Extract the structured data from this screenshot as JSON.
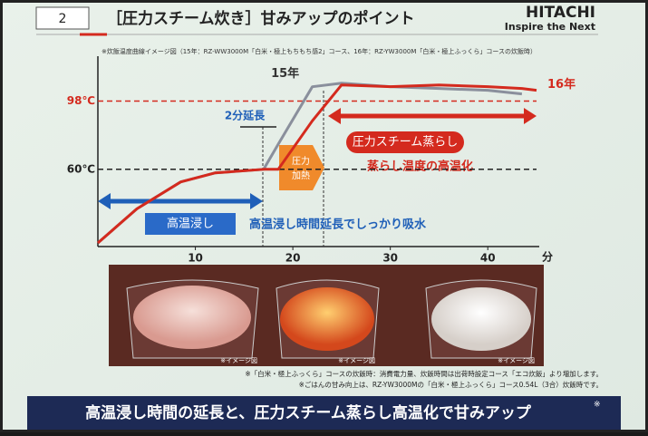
{
  "slide": {
    "number": "2",
    "title": "［圧力スチーム炊き］甘みアップのポイント",
    "logo": "HITACHI",
    "tagline": "Inspire the Next",
    "image_captions": [
      "※イメージ図",
      "※イメージ図",
      "※イメージ図"
    ],
    "notes": [
      "※「白米・極上ふっくら」コースの炊飯時：消費電力量、炊飯時間は出荷時設定コース「エコ炊飯」より増加します。",
      "※ごはんの甘み向上は、RZ-YW3000Mの「白米・極上ふっくら」コース0.54L（3合）炊飯時です。"
    ],
    "banner": "高温浸し時間の延長と、圧力スチーム蒸らし高温化で甘みアップ",
    "banner_mark": "※"
  },
  "chart_data": {
    "type": "line",
    "subtitle": "※炊飯温度曲線イメージ図（15年：RZ-WW3000M「白米・極上もちもち感2」コース、16年：RZ-YW3000M「白米・極上ふっくら」コースの炊飯時）",
    "x_label": "分",
    "x": [
      0,
      4,
      8.5,
      12,
      17,
      18.5,
      22,
      25,
      30,
      35,
      40,
      43.5,
      45
    ],
    "series": [
      {
        "name": "15年",
        "color": "#8a8f9c",
        "values": [
          19,
          38,
          53,
          58,
          60,
          74,
          106,
          108,
          106,
          105,
          104,
          102,
          null
        ]
      },
      {
        "name": "16年",
        "color": "#d42a1e",
        "values": [
          19,
          38,
          53,
          58,
          60,
          60,
          87,
          107,
          106,
          107,
          106,
          105,
          104
        ]
      }
    ],
    "xlim": [
      0,
      45
    ],
    "xticks": [
      10,
      20,
      30,
      40
    ],
    "ylim": [
      17,
      123
    ],
    "yticks": [
      {
        "value": 60,
        "label": "60℃"
      },
      {
        "value": 98,
        "label": "98℃"
      }
    ],
    "annotations": {
      "extension": "2分延長",
      "pressure_heat": [
        "圧力",
        "加熱"
      ],
      "steam": "圧力スチーム蒸らし",
      "steam_note": "蒸らし温度の高温化",
      "soak": "高温浸し",
      "soak_note": "高温浸し時間延長でしっかり吸水"
    }
  }
}
